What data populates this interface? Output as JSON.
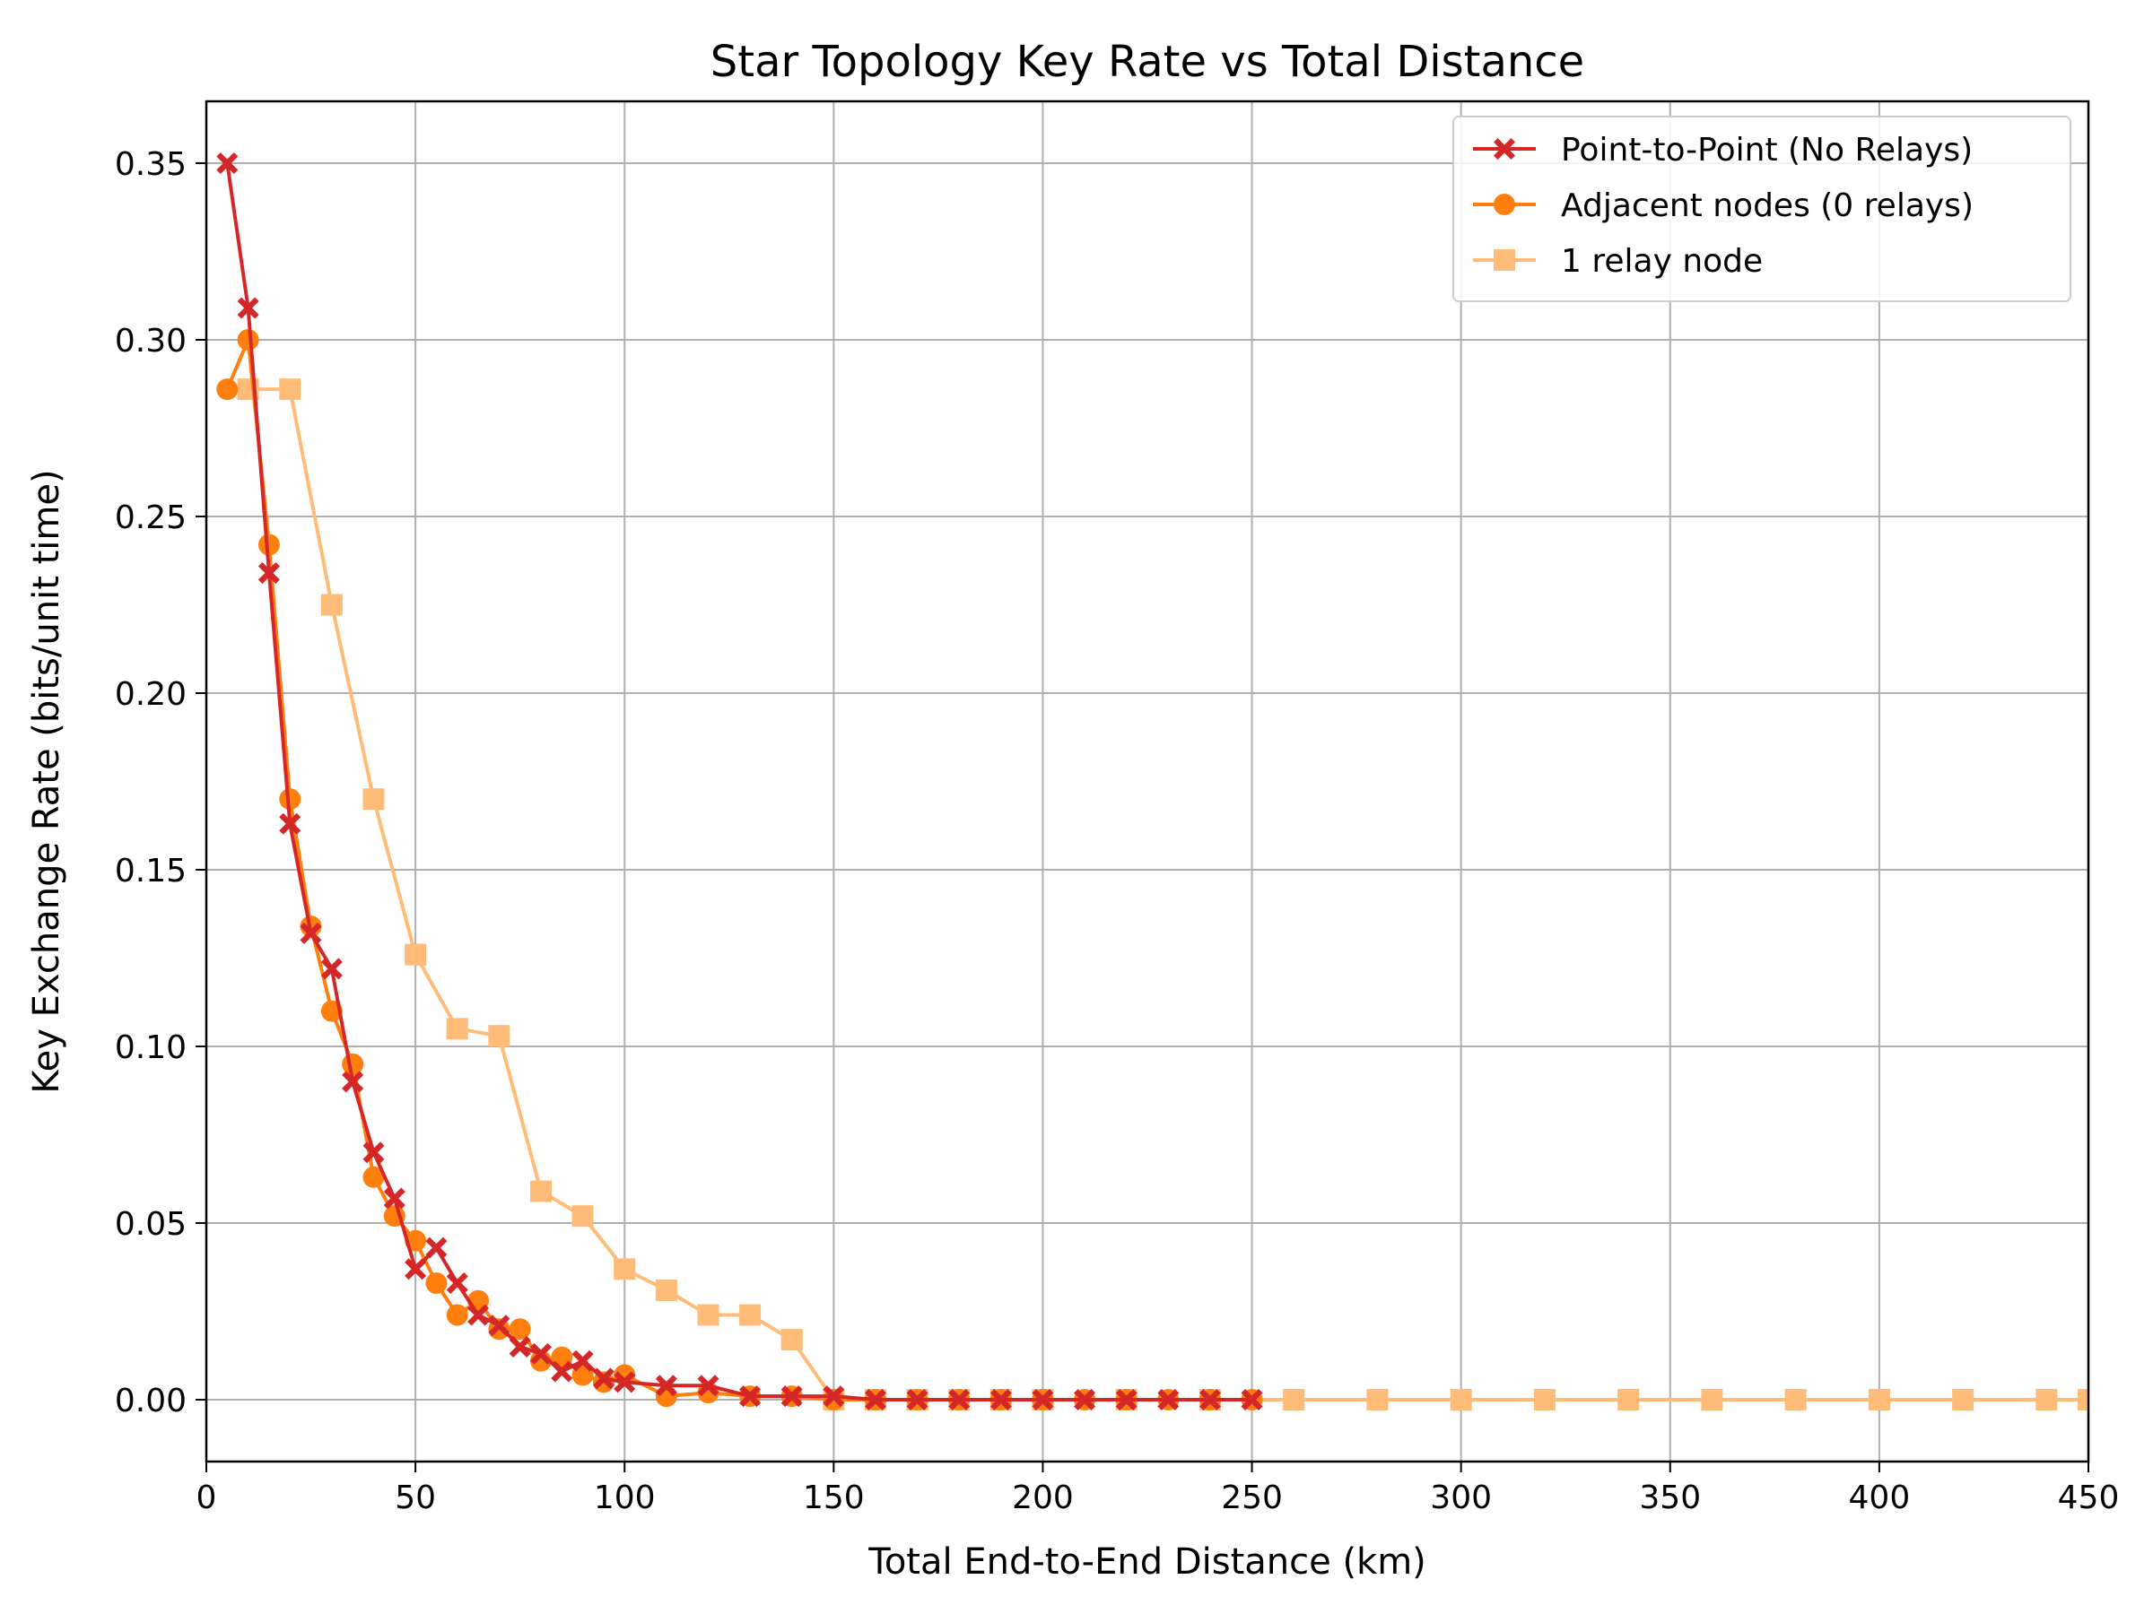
{
  "chart_data": {
    "type": "line",
    "title": "Star Topology Key Rate vs Total Distance",
    "xlabel": "Total End-to-End Distance (km)",
    "ylabel": "Key Exchange Rate (bits/unit time)",
    "xlim": [
      0,
      450
    ],
    "ylim": [
      -0.0175,
      0.3675
    ],
    "xticks": [
      0,
      50,
      100,
      150,
      200,
      250,
      300,
      350,
      400,
      450
    ],
    "yticks": [
      0.0,
      0.05,
      0.1,
      0.15,
      0.2,
      0.25,
      0.3,
      0.35
    ],
    "ytick_labels": [
      "0.00",
      "0.05",
      "0.10",
      "0.15",
      "0.20",
      "0.25",
      "0.30",
      "0.35"
    ],
    "grid": true,
    "legend_position": "top-right",
    "series": [
      {
        "name": "Point-to-Point (No Relays)",
        "color": "#d62728",
        "marker": "X",
        "x": [
          5,
          10,
          15,
          20,
          25,
          30,
          35,
          40,
          45,
          50,
          55,
          60,
          65,
          70,
          75,
          80,
          85,
          90,
          95,
          100,
          110,
          120,
          130,
          140,
          150,
          160,
          170,
          180,
          190,
          200,
          210,
          220,
          230,
          240,
          250
        ],
        "y": [
          0.35,
          0.309,
          0.234,
          0.163,
          0.132,
          0.122,
          0.09,
          0.07,
          0.057,
          0.037,
          0.043,
          0.033,
          0.024,
          0.021,
          0.015,
          0.013,
          0.008,
          0.011,
          0.006,
          0.005,
          0.004,
          0.004,
          0.001,
          0.001,
          0.001,
          0.0,
          0.0,
          0.0,
          0.0,
          0.0,
          0.0,
          0.0,
          0.0,
          0.0,
          0.0
        ]
      },
      {
        "name": "Adjacent nodes (0 relays)",
        "color": "#ff7f0e",
        "marker": "o",
        "x": [
          5,
          10,
          15,
          20,
          25,
          30,
          35,
          40,
          45,
          50,
          55,
          60,
          65,
          70,
          75,
          80,
          85,
          90,
          95,
          100,
          110,
          120,
          130,
          140,
          150,
          160,
          170,
          180,
          190,
          200,
          210,
          220,
          230,
          240,
          250
        ],
        "y": [
          0.286,
          0.3,
          0.242,
          0.17,
          0.134,
          0.11,
          0.095,
          0.063,
          0.052,
          0.045,
          0.033,
          0.024,
          0.028,
          0.02,
          0.02,
          0.011,
          0.012,
          0.007,
          0.005,
          0.007,
          0.001,
          0.002,
          0.001,
          0.001,
          0.0,
          0.0,
          0.0,
          0.0,
          0.0,
          0.0,
          0.0,
          0.0,
          0.0,
          0.0,
          0.0
        ]
      },
      {
        "name": "1 relay node",
        "color": "#ffbb78",
        "marker": "s",
        "x": [
          10,
          20,
          30,
          40,
          50,
          60,
          70,
          80,
          90,
          100,
          110,
          120,
          130,
          140,
          150,
          160,
          170,
          180,
          190,
          200,
          220,
          240,
          260,
          280,
          300,
          320,
          340,
          360,
          380,
          400,
          420,
          440,
          450
        ],
        "y": [
          0.286,
          0.286,
          0.225,
          0.17,
          0.126,
          0.105,
          0.103,
          0.059,
          0.052,
          0.037,
          0.031,
          0.024,
          0.024,
          0.017,
          0.0,
          0.0,
          0.0,
          0.0,
          0.0,
          0.0,
          0.0,
          0.0,
          0.0,
          0.0,
          0.0,
          0.0,
          0.0,
          0.0,
          0.0,
          0.0,
          0.0,
          0.0,
          0.0
        ]
      }
    ]
  }
}
